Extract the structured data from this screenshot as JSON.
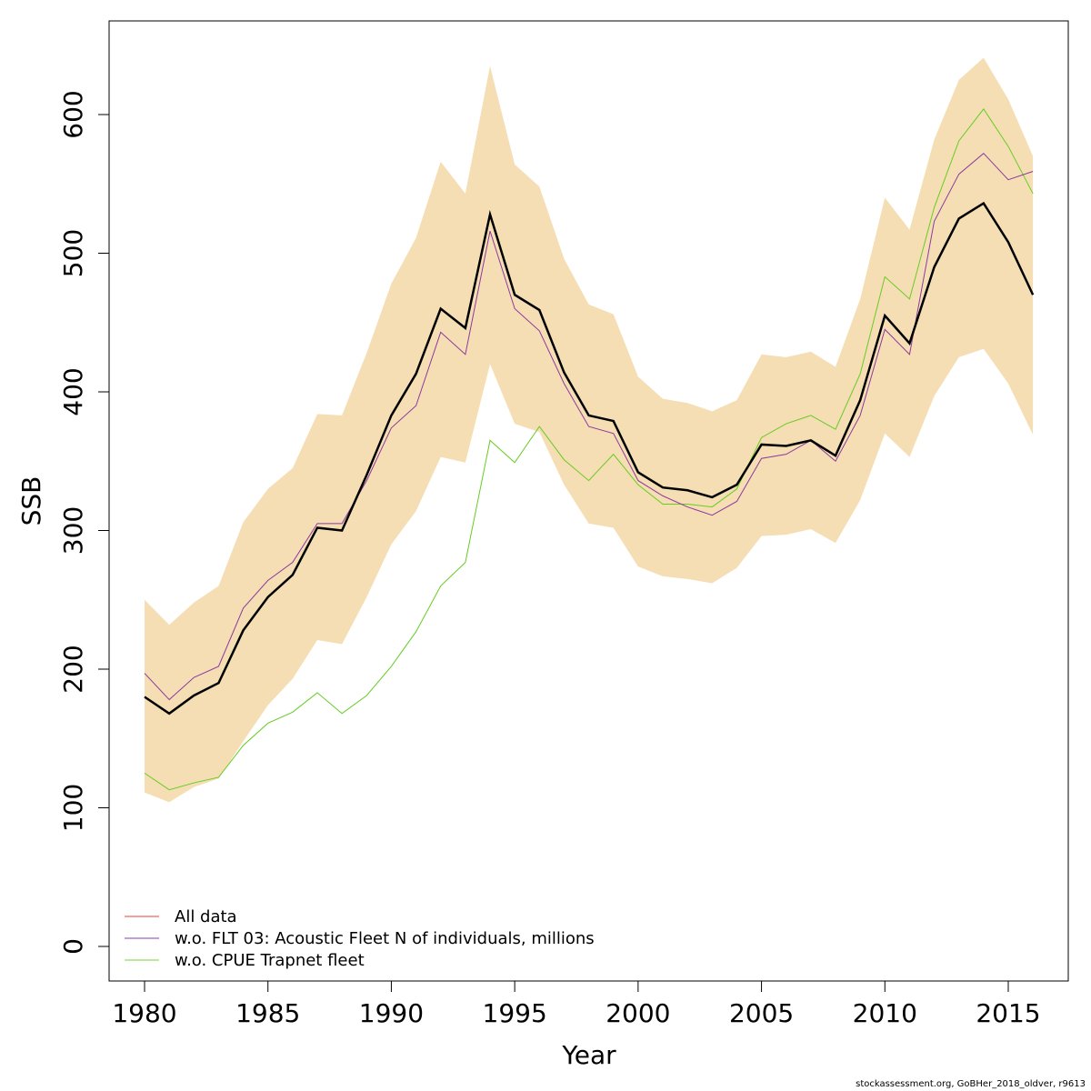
{
  "chart_data": {
    "type": "line",
    "title": "",
    "xlabel": "Year",
    "ylabel": "SSB",
    "xlim": [
      1978.6,
      2017.4
    ],
    "ylim": [
      -25,
      660
    ],
    "grid": false,
    "x_ticks": [
      1980,
      1985,
      1990,
      1995,
      2000,
      2005,
      2010,
      2015
    ],
    "y_ticks": [
      0,
      100,
      200,
      300,
      400,
      500,
      600
    ],
    "x": [
      1980,
      1981,
      1982,
      1983,
      1984,
      1985,
      1986,
      1987,
      1988,
      1989,
      1990,
      1991,
      1992,
      1993,
      1994,
      1995,
      1996,
      1997,
      1998,
      1999,
      2000,
      2001,
      2002,
      2003,
      2004,
      2005,
      2006,
      2007,
      2008,
      2009,
      2010,
      2011,
      2012,
      2013,
      2014,
      2015,
      2016
    ],
    "confidence_band": {
      "name": "All data CI",
      "color": "#F5DEB3",
      "upper": [
        250,
        232,
        248,
        260,
        306,
        330,
        345,
        384,
        383,
        428,
        478,
        511,
        566,
        543,
        635,
        564,
        548,
        496,
        463,
        456,
        411,
        395,
        392,
        386,
        394,
        427,
        425,
        429,
        418,
        467,
        540,
        517,
        582,
        625,
        641,
        611,
        570
      ],
      "lower": [
        111,
        104,
        115,
        121,
        148,
        174,
        193,
        221,
        218,
        252,
        290,
        314,
        353,
        349,
        420,
        377,
        371,
        333,
        305,
        302,
        274,
        267,
        265,
        262,
        273,
        296,
        297,
        301,
        291,
        322,
        370,
        353,
        397,
        425,
        431,
        406,
        369
      ]
    },
    "series": [
      {
        "name": "All data",
        "color": "#000000",
        "legend_color": "#F08080",
        "values": [
          180,
          168,
          181,
          190,
          228,
          252,
          268,
          302,
          300,
          340,
          383,
          413,
          460,
          446,
          528,
          470,
          459,
          414,
          383,
          379,
          342,
          331,
          329,
          324,
          333,
          362,
          361,
          365,
          354,
          394,
          455,
          435,
          490,
          525,
          536,
          508,
          470
        ]
      },
      {
        "name": "w.o. FLT 03: Acoustic Fleet   N of individuals, millions",
        "color": "#8B3A9E",
        "legend_color": "#B07FCF",
        "values": [
          197,
          178,
          194,
          202,
          244,
          264,
          277,
          305,
          305,
          336,
          374,
          390,
          443,
          427,
          516,
          460,
          444,
          406,
          375,
          370,
          336,
          325,
          317,
          311,
          321,
          352,
          355,
          365,
          350,
          383,
          445,
          427,
          523,
          557,
          572,
          553,
          559
        ]
      },
      {
        "name": "w.o. CPUE Trapnet fleet",
        "color": "#66CC22",
        "legend_color": "#A8E07A",
        "values": [
          125,
          113,
          118,
          122,
          145,
          161,
          169,
          183,
          168,
          181,
          202,
          227,
          260,
          277,
          365,
          349,
          375,
          351,
          336,
          355,
          333,
          319,
          319,
          317,
          330,
          367,
          377,
          383,
          373,
          413,
          483,
          467,
          533,
          581,
          604,
          577,
          543
        ]
      }
    ],
    "legend": {
      "position": "bottom-left"
    },
    "footer": "stockassessment.org, GoBHer_2018_oldver, r9613"
  }
}
